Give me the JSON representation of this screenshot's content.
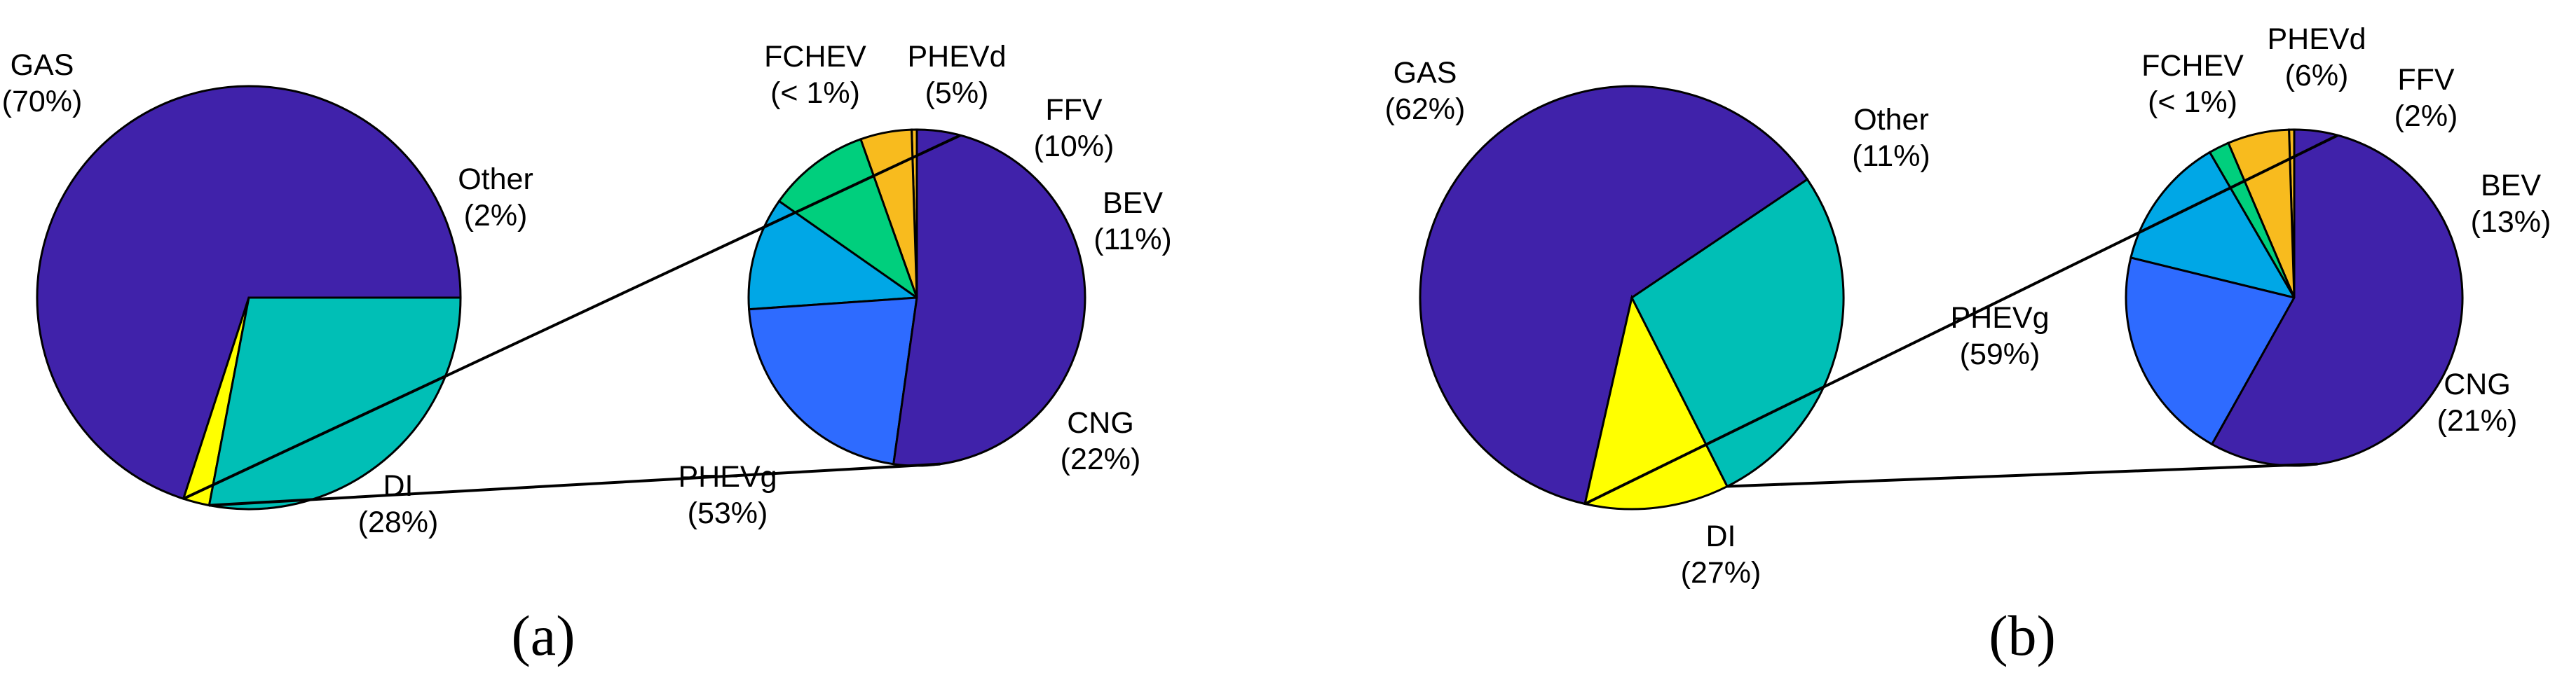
{
  "chart_data": [
    {
      "type": "pie",
      "panel_label": "a",
      "main": {
        "slices": [
          {
            "name": "GAS",
            "value": 70,
            "pct_label": "(70%)",
            "color": "#4022AA"
          },
          {
            "name": "Other",
            "value": 2,
            "pct_label": "(2%)",
            "color": "#FFFF00"
          },
          {
            "name": "DI",
            "value": 28,
            "pct_label": "(28%)",
            "color": "#00BFB6"
          }
        ]
      },
      "breakdown_of": "Other",
      "sub": {
        "slices": [
          {
            "name": "FCHEV",
            "value": 0.5,
            "pct_label": "(< 1%)",
            "color": "#F8BB1E"
          },
          {
            "name": "PHEVd",
            "value": 5,
            "pct_label": "(5%)",
            "color": "#F8BB1E"
          },
          {
            "name": "FFV",
            "value": 10,
            "pct_label": "(10%)",
            "color": "#00CF7D"
          },
          {
            "name": "BEV",
            "value": 11,
            "pct_label": "(11%)",
            "color": "#00A7E6"
          },
          {
            "name": "CNG",
            "value": 22,
            "pct_label": "(22%)",
            "color": "#2E6BFF"
          },
          {
            "name": "PHEVg",
            "value": 53,
            "pct_label": "(53%)",
            "color": "#4022AA"
          }
        ]
      }
    },
    {
      "type": "pie",
      "panel_label": "b",
      "main": {
        "slices": [
          {
            "name": "GAS",
            "value": 62,
            "pct_label": "(62%)",
            "color": "#4022AA"
          },
          {
            "name": "Other",
            "value": 11,
            "pct_label": "(11%)",
            "color": "#FFFF00"
          },
          {
            "name": "DI",
            "value": 27,
            "pct_label": "(27%)",
            "color": "#00BFB6"
          }
        ]
      },
      "breakdown_of": "Other",
      "sub": {
        "slices": [
          {
            "name": "FCHEV",
            "value": 0.5,
            "pct_label": "(< 1%)",
            "color": "#F8BB1E"
          },
          {
            "name": "PHEVd",
            "value": 6,
            "pct_label": "(6%)",
            "color": "#F8BB1E"
          },
          {
            "name": "FFV",
            "value": 2,
            "pct_label": "(2%)",
            "color": "#00CF7D"
          },
          {
            "name": "BEV",
            "value": 13,
            "pct_label": "(13%)",
            "color": "#00A7E6"
          },
          {
            "name": "CNG",
            "value": 21,
            "pct_label": "(21%)",
            "color": "#2E6BFF"
          },
          {
            "name": "PHEVg",
            "value": 59,
            "pct_label": "(59%)",
            "color": "#4022AA"
          }
        ]
      }
    }
  ]
}
